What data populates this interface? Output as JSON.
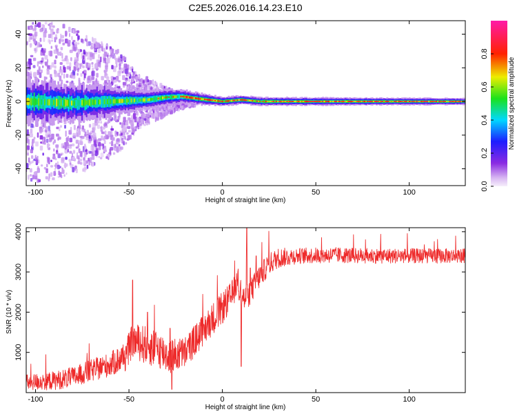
{
  "figure_title": "C2E5.2026.016.14.23.E10",
  "colors": {
    "snr_line": "#ee2b2b",
    "axis": "#000000"
  },
  "chart_data": [
    {
      "type": "heatmap",
      "title": "C2E5.2026.016.14.23.E10",
      "xlabel": "Height of straight line (km)",
      "ylabel": "Frequency (Hz)",
      "xlim": [
        -105,
        130
      ],
      "ylim": [
        -50,
        48
      ],
      "xticks": [
        -100,
        -50,
        0,
        50,
        100
      ],
      "xtick_labels": [
        "-100",
        "-50",
        "0",
        "50",
        "100"
      ],
      "yticks": [
        -40,
        -20,
        0,
        20,
        40
      ],
      "ytick_labels": [
        "-40",
        "-20",
        "0",
        "20",
        "40"
      ],
      "colorbar": {
        "label": "Normalized spectral amplitude",
        "range": [
          0,
          1
        ],
        "ticks": [
          0.0,
          0.2,
          0.4,
          0.6,
          0.8
        ],
        "tick_labels": [
          "0.0",
          "0.2",
          "0.4",
          "0.6",
          "0.8"
        ],
        "colormap": "rainbow (white-violet-blue-cyan-green-yellow-red-magenta)"
      },
      "band_center_hz": [
        [
          -105,
          0
        ],
        [
          -80,
          -1
        ],
        [
          -60,
          0
        ],
        [
          -40,
          1
        ],
        [
          -30,
          2.5
        ],
        [
          -22,
          3
        ],
        [
          -12,
          1.5
        ],
        [
          0,
          0
        ],
        [
          10,
          1
        ],
        [
          20,
          0
        ],
        [
          130,
          0
        ]
      ],
      "band_halfwidth_hz": [
        [
          -105,
          8
        ],
        [
          -80,
          7
        ],
        [
          -60,
          6
        ],
        [
          -40,
          4
        ],
        [
          -20,
          3
        ],
        [
          0,
          2
        ],
        [
          130,
          1.5
        ]
      ],
      "scatter_extent_hz": [
        [
          -105,
          48
        ],
        [
          -80,
          45
        ],
        [
          -70,
          38
        ],
        [
          -55,
          30
        ],
        [
          -45,
          16
        ],
        [
          -30,
          8
        ],
        [
          -20,
          3
        ],
        [
          0,
          0
        ]
      ]
    },
    {
      "type": "line",
      "xlabel": "Height of straight line (km)",
      "ylabel": "SNR (10 * v/v)",
      "xlim": [
        -105,
        130
      ],
      "ylim": [
        0,
        4100
      ],
      "xticks": [
        -100,
        -50,
        0,
        50,
        100
      ],
      "xtick_labels": [
        "-100",
        "-50",
        "0",
        "50",
        "100"
      ],
      "yticks": [
        1000,
        2000,
        3000,
        4000
      ],
      "ytick_labels": [
        "1000",
        "2000",
        "3000",
        "4000"
      ],
      "series": [
        {
          "name": "SNR",
          "trend": [
            [
              -105,
              250
            ],
            [
              -90,
              300
            ],
            [
              -80,
              380
            ],
            [
              -70,
              550
            ],
            [
              -60,
              700
            ],
            [
              -52,
              900
            ],
            [
              -48,
              1300
            ],
            [
              -42,
              1200
            ],
            [
              -35,
              1100
            ],
            [
              -28,
              900
            ],
            [
              -20,
              1000
            ],
            [
              -12,
              1450
            ],
            [
              -5,
              1850
            ],
            [
              0,
              2100
            ],
            [
              5,
              2400
            ],
            [
              8,
              2800
            ],
            [
              12,
              2300
            ],
            [
              15,
              2500
            ],
            [
              20,
              2900
            ],
            [
              25,
              3200
            ],
            [
              30,
              3350
            ],
            [
              40,
              3400
            ],
            [
              60,
              3420
            ],
            [
              80,
              3400
            ],
            [
              100,
              3400
            ],
            [
              130,
              3400
            ]
          ],
          "noise_amplitude": [
            [
              -105,
              200
            ],
            [
              -60,
              300
            ],
            [
              -40,
              500
            ],
            [
              -20,
              400
            ],
            [
              0,
              400
            ],
            [
              20,
              300
            ],
            [
              40,
              200
            ],
            [
              130,
              180
            ]
          ],
          "spikes": [
            [
              -48,
              2800
            ],
            [
              -40,
              2000
            ],
            [
              -28,
              1600
            ],
            [
              -10,
              1700
            ],
            [
              9,
              2300
            ],
            [
              13,
              4100
            ],
            [
              15,
              3100
            ],
            [
              18,
              3400
            ]
          ],
          "dips": [
            [
              10,
              650
            ],
            [
              -27,
              80
            ]
          ]
        }
      ]
    }
  ]
}
